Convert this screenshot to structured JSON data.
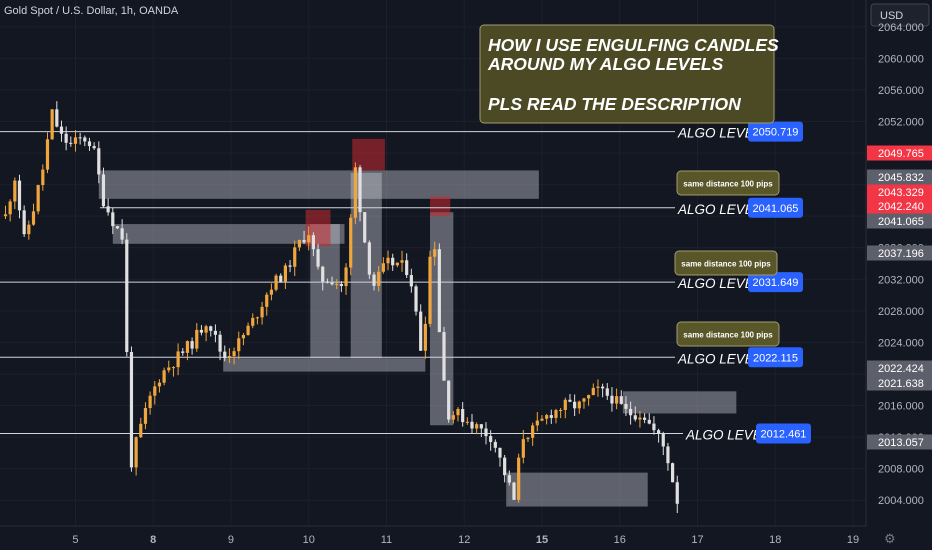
{
  "header": {
    "symbol": "Gold Spot / U.S. Dollar, 1h, OANDA"
  },
  "axis_badge": "USD",
  "headline": {
    "line1": "HOW I USE ENGULFING CANDLES",
    "line2": "AROUND MY ALGO LEVELS",
    "line3": "PLS READ THE DESCRIPTION"
  },
  "colors": {
    "background": "#131722",
    "up": "#f0a63d",
    "down": "#e0e0e0",
    "level_line": "#d1d4dc",
    "tag_blue": "#2962ff",
    "tag_red": "#f23645",
    "tag_grey": "#5d606b",
    "note": "#59562a"
  },
  "chart_data": {
    "type": "candlestick",
    "ylim": [
      2002,
      2066
    ],
    "yticks": [
      "2004.000",
      "2008.000",
      "2012.000",
      "2016.000",
      "2020.000",
      "2024.000",
      "2028.000",
      "2032.000",
      "2036.000",
      "2040.000",
      "2044.000",
      "2048.000",
      "2052.000",
      "2056.000",
      "2060.000",
      "2064.000"
    ],
    "xticks": [
      {
        "label": "5",
        "x": 4.5,
        "bold": false
      },
      {
        "label": "8",
        "x": 9.5,
        "bold": true
      },
      {
        "label": "9",
        "x": 14.5,
        "bold": false
      },
      {
        "label": "10",
        "x": 19.5,
        "bold": false
      },
      {
        "label": "11",
        "x": 24.5,
        "bold": false
      },
      {
        "label": "12",
        "x": 29.5,
        "bold": false
      },
      {
        "label": "15",
        "x": 34.5,
        "bold": true
      },
      {
        "label": "16",
        "x": 39.5,
        "bold": false
      },
      {
        "label": "17",
        "x": 44.5,
        "bold": false
      },
      {
        "label": "18",
        "x": 49.5,
        "bold": false
      },
      {
        "label": "19",
        "x": 54.5,
        "bold": false
      }
    ],
    "close_path": [
      [
        0,
        2040
      ],
      [
        0.6,
        2045
      ],
      [
        1.2,
        2037
      ],
      [
        1.8,
        2041
      ],
      [
        2.4,
        2046
      ],
      [
        3.0,
        2053
      ],
      [
        3.6,
        2050
      ],
      [
        4.2,
        2049
      ],
      [
        5.0,
        2050
      ],
      [
        5.6,
        2049
      ],
      [
        6.3,
        2042
      ],
      [
        7.0,
        2039
      ],
      [
        7.6,
        2037
      ],
      [
        8.0,
        2008
      ],
      [
        8.5,
        2012
      ],
      [
        9.3,
        2017
      ],
      [
        10.0,
        2020
      ],
      [
        11.0,
        2022
      ],
      [
        12.0,
        2024
      ],
      [
        13.0,
        2027
      ],
      [
        14.0,
        2022
      ],
      [
        15.0,
        2024
      ],
      [
        16.0,
        2027
      ],
      [
        17.0,
        2031
      ],
      [
        18.0,
        2033
      ],
      [
        19.0,
        2037
      ],
      [
        19.5,
        2038
      ],
      [
        20.2,
        2032
      ],
      [
        21.0,
        2032
      ],
      [
        21.8,
        2031
      ],
      [
        22.5,
        2046
      ],
      [
        23.0,
        2038
      ],
      [
        23.6,
        2031
      ],
      [
        24.5,
        2034
      ],
      [
        25.2,
        2034
      ],
      [
        26.0,
        2033
      ],
      [
        26.8,
        2022
      ],
      [
        27.5,
        2040
      ],
      [
        28.0,
        2022
      ],
      [
        28.5,
        2015
      ],
      [
        29.0,
        2015
      ],
      [
        29.8,
        2014
      ],
      [
        30.5,
        2013
      ],
      [
        31.3,
        2012
      ],
      [
        32.0,
        2008
      ],
      [
        32.7,
        2004
      ],
      [
        33.2,
        2012
      ],
      [
        34.0,
        2013
      ],
      [
        35.0,
        2015
      ],
      [
        36.0,
        2016
      ],
      [
        37.0,
        2016
      ],
      [
        38.0,
        2018
      ],
      [
        39.0,
        2017
      ],
      [
        40.0,
        2015
      ],
      [
        41.0,
        2015
      ],
      [
        41.6,
        2013
      ],
      [
        42.0,
        2012
      ],
      [
        42.5,
        2010
      ],
      [
        43.2,
        2004
      ]
    ],
    "levels": [
      {
        "label": "ALGO LEVEL",
        "value": "2050.719"
      },
      {
        "label": "ALGO LEVEL",
        "value": "2041.065"
      },
      {
        "label": "ALGO LEVEL",
        "value": "2031.649"
      },
      {
        "label": "ALGO LEVEL",
        "value": "2022.115"
      },
      {
        "label": "ALGO LEVEL",
        "value": "2012.461"
      }
    ],
    "level_prices": [
      2050.719,
      2041.065,
      2031.649,
      2022.115,
      2012.461
    ],
    "notes": [
      "same distance 100 pips",
      "same distance 100 pips",
      "same distance 100 pips"
    ],
    "price_tags": [
      {
        "value": "2049.765",
        "color": "red"
      },
      {
        "value": "2045.832",
        "color": "grey"
      },
      {
        "value": "2043.329",
        "color": "red"
      },
      {
        "value": "2042.240",
        "color": "red"
      },
      {
        "value": "2041.065",
        "color": "grey"
      },
      {
        "value": "2037.196",
        "color": "grey"
      },
      {
        "value": "2022.424",
        "color": "grey"
      },
      {
        "value": "2021.638",
        "color": "grey"
      },
      {
        "value": "2013.057",
        "color": "grey"
      }
    ],
    "tag_prices": [
      2049.765,
      2045.832,
      2043.329,
      2042.24,
      2041.065,
      2037.196,
      2022.424,
      2021.638,
      2013.057
    ],
    "zones": [
      {
        "x1": 6.0,
        "x2": 34.3,
        "y1": 2045.8,
        "y2": 2042.2
      },
      {
        "x1": 6.9,
        "x2": 21.8,
        "y1": 2039.0,
        "y2": 2036.5
      },
      {
        "x1": 19.6,
        "x2": 21.5,
        "y1": 2039.0,
        "y2": 2022.0
      },
      {
        "x1": 14.0,
        "x2": 27.0,
        "y1": 2022.0,
        "y2": 2020.3
      },
      {
        "x1": 22.2,
        "x2": 24.2,
        "y1": 2045.5,
        "y2": 2022.0
      },
      {
        "x1": 27.3,
        "x2": 28.8,
        "y1": 2040.5,
        "y2": 2013.5
      },
      {
        "x1": 39.7,
        "x2": 47.0,
        "y1": 2017.8,
        "y2": 2015.0
      },
      {
        "x1": 32.2,
        "x2": 41.3,
        "y1": 2007.5,
        "y2": 2003.2
      }
    ],
    "red_zones": [
      {
        "x1": 19.3,
        "x2": 20.9,
        "y1": 2040.8,
        "y2": 2036.2
      },
      {
        "x1": 22.3,
        "x2": 24.4,
        "y1": 2049.8,
        "y2": 2045.8
      },
      {
        "x1": 27.3,
        "x2": 28.6,
        "y1": 2042.5,
        "y2": 2040.0
      }
    ]
  }
}
